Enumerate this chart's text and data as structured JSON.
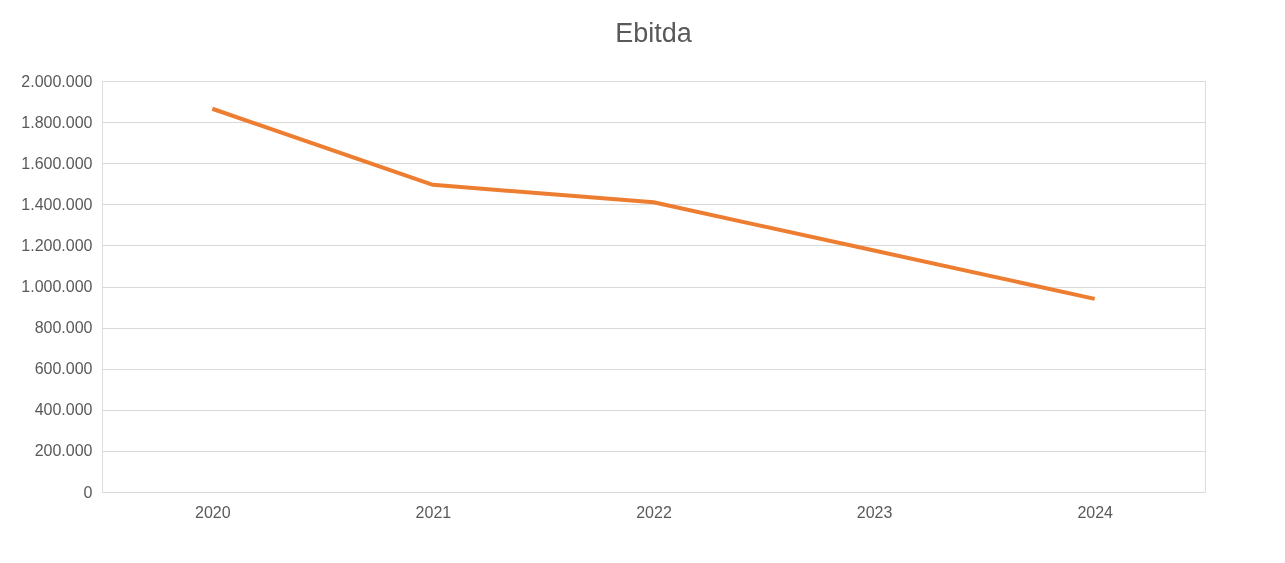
{
  "chart_data": {
    "type": "line",
    "title": "Ebitda",
    "categories": [
      "2020",
      "2021",
      "2022",
      "2023",
      "2024"
    ],
    "series": [
      {
        "color": "#ed7d31",
        "values": [
          1865000,
          1495000,
          1410000,
          1175000,
          940000
        ]
      }
    ],
    "ylim": [
      0,
      2000000
    ],
    "yticks": [
      0,
      {
        "value": 200000,
        "label": "200.000"
      },
      {
        "value": 400000,
        "label": "400.000"
      },
      {
        "value": 600000,
        "label": "600.000"
      },
      {
        "value": 800000,
        "label": "800.000"
      },
      {
        "value": 1000000,
        "label": "1.000.000"
      },
      {
        "value": 1200000,
        "label": "1.200.000"
      },
      {
        "value": 1400000,
        "label": "1.400.000"
      },
      {
        "value": 1600000,
        "label": "1.600.000"
      },
      {
        "value": 1800000,
        "label": "1.800.000"
      },
      {
        "value": 2000000,
        "label": "2.000.000"
      }
    ],
    "grid": "y",
    "legend": false,
    "marker": "none",
    "line_style": "solid"
  }
}
